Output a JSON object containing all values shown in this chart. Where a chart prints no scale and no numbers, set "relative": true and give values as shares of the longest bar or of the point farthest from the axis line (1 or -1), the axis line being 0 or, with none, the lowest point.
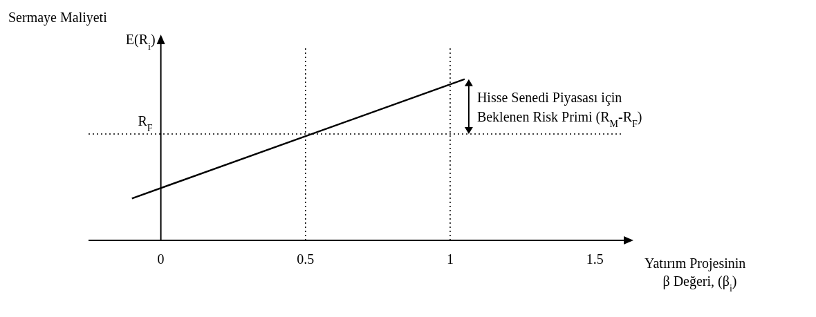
{
  "chart_data": {
    "type": "line",
    "relative": true,
    "ylabel": "Sermaye Maliyeti\nE(R$_{i}$)",
    "xlabel": "Yatırım Projesinin\nβ Değeri, (β$_{i}$)",
    "x": [
      -0.1,
      1.05
    ],
    "series": [
      {
        "color": "#000000",
        "values": [
          0.26,
          1
        ]
      }
    ],
    "xlim": [
      -0.25,
      1.6
    ],
    "xticks": [
      0,
      0.5,
      1,
      1.5
    ],
    "marker": "none",
    "line_style": "solid",
    "ref_lines": [
      {
        "axis": "y",
        "value": 0.66,
        "label": "R$_{F}$",
        "line_style": "dotted",
        "color": "#000000"
      },
      {
        "axis": "x",
        "value": 0.5,
        "line_style": "dotted",
        "color": "#000000"
      },
      {
        "axis": "x",
        "value": 1,
        "line_style": "dotted",
        "color": "#000000"
      }
    ],
    "annotations": [
      "Hisse Senedi Piyasası için\nBeklenen Risk Primi (R$_{M}$-R$_{F}$)"
    ]
  }
}
